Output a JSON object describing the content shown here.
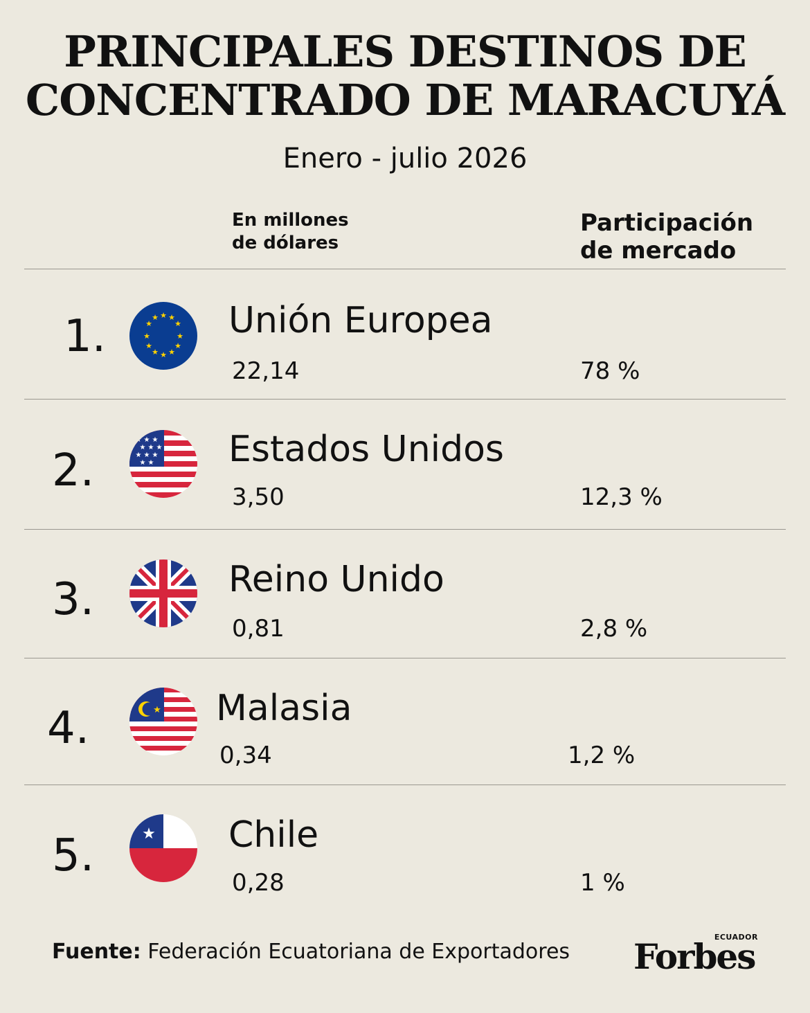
{
  "header": {
    "title_line1": "PRINCIPALES DESTINOS DE",
    "title_line2": "CONCENTRADO DE MARACUYÁ",
    "subtitle": "Enero - julio 2026"
  },
  "columns": {
    "value_line1": "En millones",
    "value_line2": "de dólares",
    "share_line1": "Participación",
    "share_line2": "de mercado"
  },
  "rows": [
    {
      "rank": "1.",
      "country": "Unión Europea",
      "value": "22,14",
      "share": "78 %",
      "flag_icon": "eu-flag-icon"
    },
    {
      "rank": "2.",
      "country": "Estados Unidos",
      "value": "3,50",
      "share": "12,3 %",
      "flag_icon": "us-flag-icon"
    },
    {
      "rank": "3.",
      "country": "Reino Unido",
      "value": "0,81",
      "share": "2,8 %",
      "flag_icon": "uk-flag-icon"
    },
    {
      "rank": "4.",
      "country": "Malasia",
      "value": "0,34",
      "share": "1,2 %",
      "flag_icon": "malaysia-flag-icon"
    },
    {
      "rank": "5.",
      "country": "Chile",
      "value": "0,28",
      "share": "1 %",
      "flag_icon": "chile-flag-icon"
    }
  ],
  "footer": {
    "source_label": "Fuente:",
    "source_text": "Federación Ecuatoriana de Exportadores"
  },
  "brand": {
    "name": "Forbes",
    "edition": "ECUADOR"
  },
  "colors": {
    "background": "#ece9df",
    "text": "#111111",
    "rule": "#9a978f"
  },
  "chart_data": {
    "type": "table",
    "title": "PRINCIPALES DESTINOS DE CONCENTRADO DE MARACUYÁ",
    "subtitle": "Enero - julio 2026",
    "columns": [
      "En millones de dólares",
      "Participación de mercado"
    ],
    "categories": [
      "Unión Europea",
      "Estados Unidos",
      "Reino Unido",
      "Malasia",
      "Chile"
    ],
    "series": [
      {
        "name": "En millones de dólares",
        "values": [
          22.14,
          3.5,
          0.81,
          0.34,
          0.28
        ]
      },
      {
        "name": "Participación de mercado",
        "values": [
          78,
          12.3,
          2.8,
          1.2,
          1
        ]
      }
    ]
  }
}
